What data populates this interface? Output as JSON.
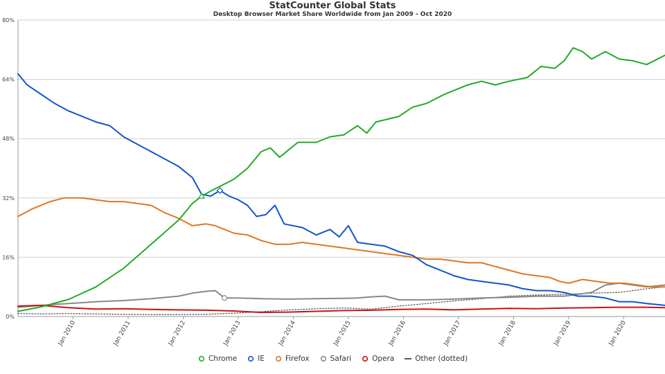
{
  "chart_data": {
    "type": "line",
    "title": "StatCounter Global Stats",
    "subtitle": "Desktop Browser Market Share Worldwide from Jan 2009 - Oct 2020",
    "xlabel": "",
    "ylabel": "",
    "ylim": [
      0,
      80
    ],
    "y_ticks": [
      "0%",
      "16%",
      "32%",
      "48%",
      "64%",
      "80%"
    ],
    "x_range": [
      "2009-01",
      "2020-10"
    ],
    "x_ticks": [
      "Jan 2010",
      "Jan 2011",
      "Jan 2012",
      "Jan 2013",
      "Jan 2014",
      "Jan 2015",
      "Jan 2016",
      "Jan 2017",
      "Jan 2018",
      "Jan 2019",
      "Jan 2020"
    ],
    "grid": true,
    "legend_position": "bottom",
    "series": [
      {
        "name": "Chrome",
        "color": "#22aa22",
        "marker": "circle",
        "points": [
          [
            "2009-01",
            1.4
          ],
          [
            "2009-06",
            2.6
          ],
          [
            "2009-12",
            4.6
          ],
          [
            "2010-06",
            8.0
          ],
          [
            "2010-12",
            13.0
          ],
          [
            "2011-06",
            19.5
          ],
          [
            "2011-12",
            26.0
          ],
          [
            "2012-03",
            30.5
          ],
          [
            "2012-05",
            32.5
          ],
          [
            "2012-08",
            34.5
          ],
          [
            "2012-12",
            37.0
          ],
          [
            "2013-03",
            40.0
          ],
          [
            "2013-06",
            44.5
          ],
          [
            "2013-08",
            45.5
          ],
          [
            "2013-10",
            43.0
          ],
          [
            "2013-12",
            45.0
          ],
          [
            "2014-02",
            47.0
          ],
          [
            "2014-06",
            47.0
          ],
          [
            "2014-09",
            48.5
          ],
          [
            "2014-12",
            49.0
          ],
          [
            "2015-03",
            51.5
          ],
          [
            "2015-05",
            49.5
          ],
          [
            "2015-07",
            52.5
          ],
          [
            "2015-12",
            54.0
          ],
          [
            "2016-03",
            56.5
          ],
          [
            "2016-06",
            57.5
          ],
          [
            "2016-10",
            60.0
          ],
          [
            "2017-03",
            62.5
          ],
          [
            "2017-06",
            63.5
          ],
          [
            "2017-09",
            62.5
          ],
          [
            "2017-12",
            63.5
          ],
          [
            "2018-04",
            64.5
          ],
          [
            "2018-07",
            67.5
          ],
          [
            "2018-10",
            67.0
          ],
          [
            "2018-12",
            69.0
          ],
          [
            "2019-02",
            72.5
          ],
          [
            "2019-04",
            71.5
          ],
          [
            "2019-06",
            69.5
          ],
          [
            "2019-09",
            71.5
          ],
          [
            "2019-12",
            69.5
          ],
          [
            "2020-03",
            69.0
          ],
          [
            "2020-06",
            68.0
          ],
          [
            "2020-10",
            70.5
          ]
        ]
      },
      {
        "name": "IE",
        "color": "#1155cc",
        "marker": "diamond",
        "points": [
          [
            "2009-01",
            65.5
          ],
          [
            "2009-03",
            62.5
          ],
          [
            "2009-06",
            60.0
          ],
          [
            "2009-09",
            57.5
          ],
          [
            "2009-12",
            55.5
          ],
          [
            "2010-03",
            54.0
          ],
          [
            "2010-06",
            52.5
          ],
          [
            "2010-09",
            51.5
          ],
          [
            "2010-12",
            48.5
          ],
          [
            "2011-03",
            46.5
          ],
          [
            "2011-06",
            44.5
          ],
          [
            "2011-09",
            42.5
          ],
          [
            "2011-12",
            40.5
          ],
          [
            "2012-03",
            37.5
          ],
          [
            "2012-05",
            33.0
          ],
          [
            "2012-07",
            32.5
          ],
          [
            "2012-09",
            34.0
          ],
          [
            "2012-11",
            32.5
          ],
          [
            "2013-01",
            31.5
          ],
          [
            "2013-03",
            30.0
          ],
          [
            "2013-05",
            27.0
          ],
          [
            "2013-07",
            27.5
          ],
          [
            "2013-09",
            30.0
          ],
          [
            "2013-11",
            25.0
          ],
          [
            "2014-03",
            24.0
          ],
          [
            "2014-06",
            22.0
          ],
          [
            "2014-09",
            23.5
          ],
          [
            "2014-11",
            21.5
          ],
          [
            "2015-01",
            24.5
          ],
          [
            "2015-03",
            20.0
          ],
          [
            "2015-06",
            19.5
          ],
          [
            "2015-09",
            19.0
          ],
          [
            "2015-12",
            17.5
          ],
          [
            "2016-03",
            16.5
          ],
          [
            "2016-06",
            14.0
          ],
          [
            "2016-09",
            12.5
          ],
          [
            "2016-12",
            11.0
          ],
          [
            "2017-03",
            10.0
          ],
          [
            "2017-06",
            9.5
          ],
          [
            "2017-09",
            9.0
          ],
          [
            "2017-12",
            8.5
          ],
          [
            "2018-03",
            7.5
          ],
          [
            "2018-06",
            7.0
          ],
          [
            "2018-09",
            7.0
          ],
          [
            "2018-12",
            6.5
          ],
          [
            "2019-03",
            5.5
          ],
          [
            "2019-06",
            5.5
          ],
          [
            "2019-09",
            5.0
          ],
          [
            "2019-12",
            4.0
          ],
          [
            "2020-03",
            4.0
          ],
          [
            "2020-06",
            3.5
          ],
          [
            "2020-10",
            3.0
          ]
        ]
      },
      {
        "name": "Firefox",
        "color": "#dd7722",
        "marker": "square",
        "points": [
          [
            "2009-01",
            27.0
          ],
          [
            "2009-04",
            29.0
          ],
          [
            "2009-08",
            31.0
          ],
          [
            "2009-11",
            32.0
          ],
          [
            "2010-03",
            32.0
          ],
          [
            "2010-06",
            31.5
          ],
          [
            "2010-09",
            31.0
          ],
          [
            "2010-12",
            31.0
          ],
          [
            "2011-03",
            30.5
          ],
          [
            "2011-06",
            30.0
          ],
          [
            "2011-09",
            28.0
          ],
          [
            "2011-12",
            26.5
          ],
          [
            "2012-03",
            24.5
          ],
          [
            "2012-06",
            25.0
          ],
          [
            "2012-08",
            24.5
          ],
          [
            "2012-12",
            22.5
          ],
          [
            "2013-03",
            22.0
          ],
          [
            "2013-06",
            20.5
          ],
          [
            "2013-09",
            19.5
          ],
          [
            "2013-12",
            19.5
          ],
          [
            "2014-03",
            20.0
          ],
          [
            "2014-06",
            19.5
          ],
          [
            "2014-09",
            19.0
          ],
          [
            "2014-12",
            18.5
          ],
          [
            "2015-03",
            18.0
          ],
          [
            "2015-06",
            17.5
          ],
          [
            "2015-09",
            17.0
          ],
          [
            "2015-12",
            16.5
          ],
          [
            "2016-03",
            16.0
          ],
          [
            "2016-06",
            15.5
          ],
          [
            "2016-09",
            15.5
          ],
          [
            "2016-12",
            15.0
          ],
          [
            "2017-03",
            14.5
          ],
          [
            "2017-06",
            14.5
          ],
          [
            "2017-09",
            13.5
          ],
          [
            "2017-12",
            12.5
          ],
          [
            "2018-03",
            11.5
          ],
          [
            "2018-06",
            11.0
          ],
          [
            "2018-09",
            10.5
          ],
          [
            "2018-11",
            9.5
          ],
          [
            "2019-01",
            9.0
          ],
          [
            "2019-04",
            10.0
          ],
          [
            "2019-07",
            9.5
          ],
          [
            "2019-10",
            9.0
          ],
          [
            "2020-01",
            9.0
          ],
          [
            "2020-04",
            8.5
          ],
          [
            "2020-07",
            8.0
          ],
          [
            "2020-10",
            8.0
          ]
        ]
      },
      {
        "name": "Safari",
        "color": "#888888",
        "marker": "circle",
        "points": [
          [
            "2009-01",
            2.5
          ],
          [
            "2009-06",
            3.0
          ],
          [
            "2009-12",
            3.5
          ],
          [
            "2010-06",
            4.0
          ],
          [
            "2010-12",
            4.3
          ],
          [
            "2011-06",
            4.8
          ],
          [
            "2011-12",
            5.5
          ],
          [
            "2012-03",
            6.3
          ],
          [
            "2012-06",
            6.8
          ],
          [
            "2012-08",
            7.0
          ],
          [
            "2012-10",
            5.0
          ],
          [
            "2013-01",
            5.0
          ],
          [
            "2013-06",
            4.8
          ],
          [
            "2013-12",
            4.7
          ],
          [
            "2014-06",
            4.8
          ],
          [
            "2014-12",
            4.9
          ],
          [
            "2015-03",
            5.0
          ],
          [
            "2015-06",
            5.3
          ],
          [
            "2015-09",
            5.5
          ],
          [
            "2015-12",
            4.5
          ],
          [
            "2016-06",
            4.5
          ],
          [
            "2016-12",
            4.7
          ],
          [
            "2017-06",
            5.0
          ],
          [
            "2017-12",
            5.2
          ],
          [
            "2018-06",
            5.5
          ],
          [
            "2018-12",
            5.5
          ],
          [
            "2019-06",
            6.5
          ],
          [
            "2019-09",
            8.5
          ],
          [
            "2019-12",
            9.0
          ],
          [
            "2020-03",
            8.5
          ],
          [
            "2020-06",
            8.0
          ],
          [
            "2020-10",
            8.5
          ]
        ]
      },
      {
        "name": "Opera",
        "color": "#cc1111",
        "marker": "circle",
        "points": [
          [
            "2009-01",
            2.8
          ],
          [
            "2009-06",
            3.0
          ],
          [
            "2009-12",
            2.4
          ],
          [
            "2010-06",
            2.0
          ],
          [
            "2010-12",
            2.1
          ],
          [
            "2011-06",
            1.9
          ],
          [
            "2011-12",
            1.8
          ],
          [
            "2012-06",
            1.7
          ],
          [
            "2012-12",
            1.5
          ],
          [
            "2013-06",
            1.1
          ],
          [
            "2013-12",
            1.2
          ],
          [
            "2014-06",
            1.4
          ],
          [
            "2014-12",
            1.6
          ],
          [
            "2015-06",
            1.7
          ],
          [
            "2015-12",
            1.9
          ],
          [
            "2016-06",
            2.0
          ],
          [
            "2016-12",
            1.8
          ],
          [
            "2017-06",
            2.0
          ],
          [
            "2017-12",
            2.2
          ],
          [
            "2018-06",
            2.1
          ],
          [
            "2018-12",
            2.3
          ],
          [
            "2019-06",
            2.4
          ],
          [
            "2019-12",
            2.5
          ],
          [
            "2020-06",
            2.5
          ],
          [
            "2020-10",
            2.4
          ]
        ]
      },
      {
        "name": "Other (dotted)",
        "color": "#555555",
        "dotted": true,
        "marker": "none",
        "points": [
          [
            "2009-01",
            0.8
          ],
          [
            "2009-06",
            0.7
          ],
          [
            "2009-12",
            0.8
          ],
          [
            "2010-06",
            0.7
          ],
          [
            "2010-12",
            0.6
          ],
          [
            "2011-06",
            0.5
          ],
          [
            "2011-12",
            0.5
          ],
          [
            "2012-06",
            0.6
          ],
          [
            "2012-12",
            0.9
          ],
          [
            "2013-06",
            1.3
          ],
          [
            "2013-12",
            1.8
          ],
          [
            "2014-06",
            2.1
          ],
          [
            "2014-12",
            2.3
          ],
          [
            "2015-06",
            2.0
          ],
          [
            "2015-12",
            2.8
          ],
          [
            "2016-06",
            3.5
          ],
          [
            "2016-12",
            4.2
          ],
          [
            "2017-06",
            4.8
          ],
          [
            "2017-12",
            5.5
          ],
          [
            "2018-06",
            5.8
          ],
          [
            "2018-12",
            6.0
          ],
          [
            "2019-06",
            6.3
          ],
          [
            "2019-12",
            6.5
          ],
          [
            "2020-06",
            7.5
          ],
          [
            "2020-10",
            8.0
          ]
        ]
      }
    ]
  }
}
